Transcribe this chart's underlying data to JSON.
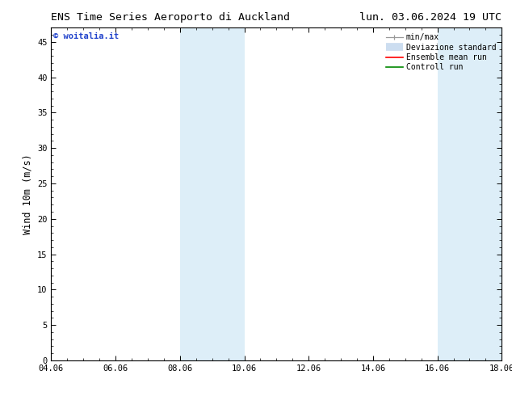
{
  "title_left": "ENS Time Series Aeroporto di Auckland",
  "title_right": "lun. 03.06.2024 19 UTC",
  "ylabel": "Wind 10m (m/s)",
  "ylim": [
    0,
    47
  ],
  "yticks": [
    0,
    5,
    10,
    15,
    20,
    25,
    30,
    35,
    40,
    45
  ],
  "xtick_labels": [
    "04.06",
    "06.06",
    "08.06",
    "10.06",
    "12.06",
    "14.06",
    "16.06",
    "18.06"
  ],
  "xtick_positions": [
    0,
    2,
    4,
    6,
    8,
    10,
    12,
    14
  ],
  "xlim": [
    0,
    14
  ],
  "shaded_bands": [
    {
      "x_start": 4,
      "x_end": 6
    },
    {
      "x_start": 12,
      "x_end": 14
    }
  ],
  "shaded_color": "#ddeef8",
  "background_color": "#ffffff",
  "watermark_text": "© woitalia.it",
  "watermark_color": "#2244cc",
  "legend_labels": [
    "min/max",
    "Deviazione standard",
    "Ensemble mean run",
    "Controll run"
  ],
  "legend_colors": [
    "#999999",
    "#ccddf0",
    "#ff0000",
    "#008800"
  ],
  "title_fontsize": 9.5,
  "tick_fontsize": 7.5,
  "label_fontsize": 8.5,
  "watermark_fontsize": 7.5,
  "legend_fontsize": 7.0
}
